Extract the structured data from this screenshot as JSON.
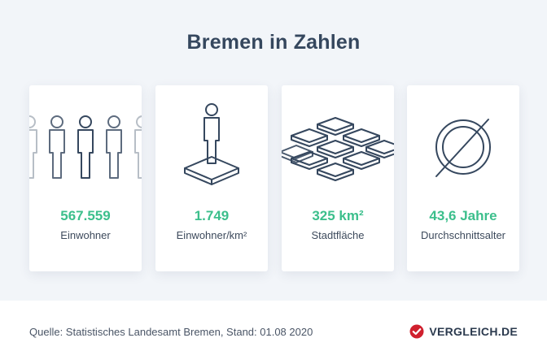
{
  "title": "Bremen in Zahlen",
  "accent_color": "#3cbf8c",
  "icon_color": "#35475e",
  "cards": [
    {
      "icon": "people-row-icon",
      "value": "567.559",
      "label": "Einwohner"
    },
    {
      "icon": "person-on-square-icon",
      "value": "1.749",
      "label": "Einwohner/km²"
    },
    {
      "icon": "area-tiles-icon",
      "value": "325 km²",
      "label": "Stadtfläche"
    },
    {
      "icon": "diameter-circle-icon",
      "value": "43,6 Jahre",
      "label": "Durchschnittsalter"
    }
  ],
  "footer": {
    "source": "Quelle: Statistisches Landesamt Bremen, Stand: 01.08 2020",
    "brand": "VERGLEICH.DE",
    "brand_color": "#d0202e"
  }
}
